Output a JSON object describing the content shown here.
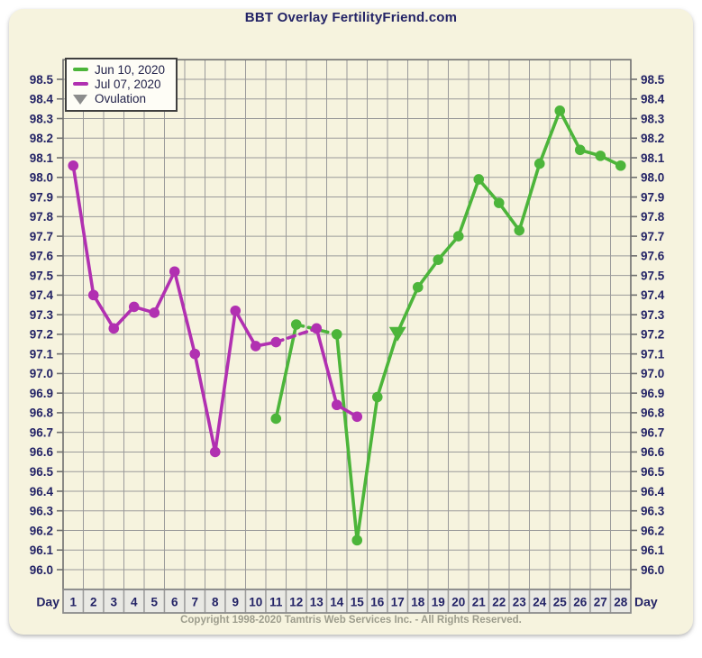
{
  "header": {
    "title": "BBT Overlay FertilityFriend.com"
  },
  "footer": {
    "copyright": "Copyright 1998-2020 Tamtris Web Services Inc. - All Rights Reserved."
  },
  "colors": {
    "panel_bg": "#f6f3de",
    "grid": "#9a9a9a",
    "plot_border": "#6f6f6f",
    "label_navy": "#232366",
    "day_cell_bg": "#e9e9e4",
    "ovulation_legend": "#8c8c8c",
    "copyright_gray": "#9d9d8d"
  },
  "chart_data": {
    "type": "line",
    "title": "BBT Overlay FertilityFriend.com",
    "xlabel": "Day",
    "ylabel": "",
    "day_label": "Day",
    "x": [
      1,
      2,
      3,
      4,
      5,
      6,
      7,
      8,
      9,
      10,
      11,
      12,
      13,
      14,
      15,
      16,
      17,
      18,
      19,
      20,
      21,
      22,
      23,
      24,
      25,
      26,
      27,
      28
    ],
    "y_ticks": [
      "98.5",
      "98.4",
      "98.3",
      "98.2",
      "98.1",
      "98.0",
      "97.9",
      "97.8",
      "97.7",
      "97.6",
      "97.5",
      "97.4",
      "97.3",
      "97.2",
      "97.1",
      "97.0",
      "96.9",
      "96.8",
      "96.7",
      "96.6",
      "96.5",
      "96.4",
      "96.3",
      "96.2",
      "96.1",
      "96.0"
    ],
    "ylim": [
      95.9,
      98.6
    ],
    "grid": true,
    "legend": {
      "position": "top-left",
      "ovulation_label": "Ovulation",
      "ovulation_color": "#8c8c8c"
    },
    "series": [
      {
        "name": "Jun 10, 2020",
        "color": "#4cb53a",
        "start_day": 11,
        "ovulation_day": 17,
        "values": [
          96.77,
          97.25,
          null,
          97.2,
          96.15,
          96.88,
          97.21,
          97.44,
          97.58,
          97.7,
          97.99,
          97.87,
          97.73,
          98.07,
          98.34,
          98.14,
          98.11,
          98.06
        ]
      },
      {
        "name": "Jul 07, 2020",
        "color": "#b130b1",
        "start_day": 1,
        "ovulation_day": null,
        "values": [
          98.06,
          97.4,
          97.23,
          97.34,
          97.31,
          97.52,
          97.1,
          96.6,
          97.32,
          97.14,
          97.16,
          null,
          97.23,
          96.84,
          96.78
        ]
      }
    ]
  }
}
